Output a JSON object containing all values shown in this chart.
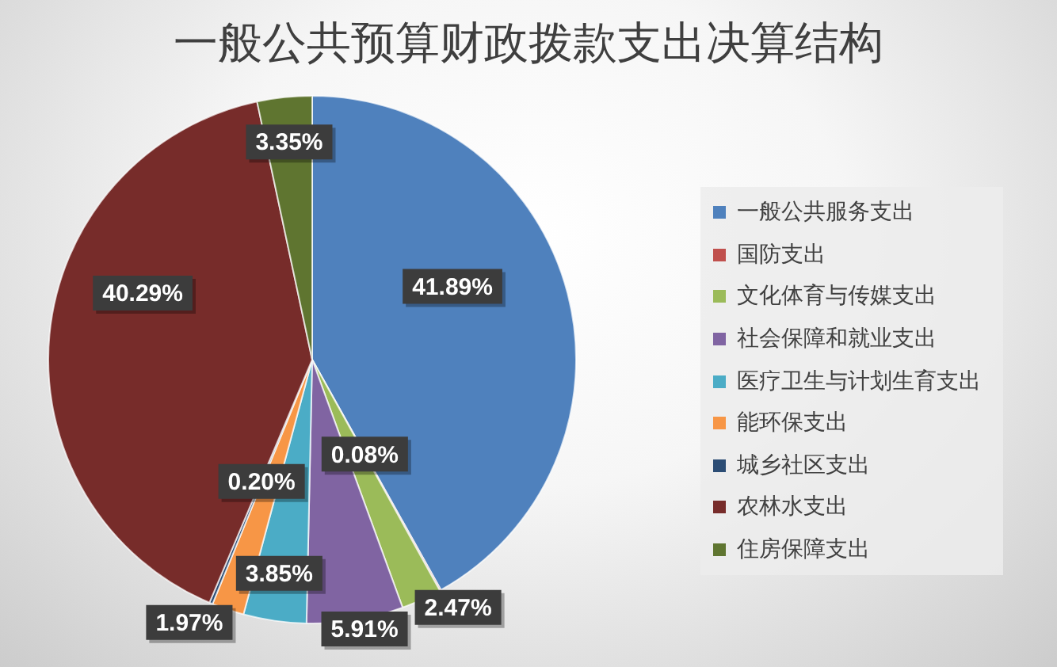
{
  "chart_data": {
    "type": "pie",
    "title": "一般公共预算财政拨款支出决算结构",
    "categories": [
      "一般公共服务支出",
      "国防支出",
      "文化体育与传媒支出",
      "社会保障和就业支出",
      "医疗卫生与计划生育支出",
      "能环保支出",
      "城乡社区支出",
      "农林水支出",
      "住房保障支出"
    ],
    "values": [
      41.89,
      0.08,
      2.47,
      5.91,
      3.85,
      1.97,
      0.2,
      40.29,
      3.35
    ],
    "colors": [
      "#4f81bd",
      "#c0504d",
      "#9bbb59",
      "#8064a2",
      "#4bacc6",
      "#f79646",
      "#2c4d75",
      "#772c2a",
      "#5f7530"
    ],
    "value_labels": [
      "41.89%",
      "0.08%",
      "2.47%",
      "5.91%",
      "3.85%",
      "1.97%",
      "0.20%",
      "40.29%",
      "3.35%"
    ],
    "legend": "right"
  }
}
